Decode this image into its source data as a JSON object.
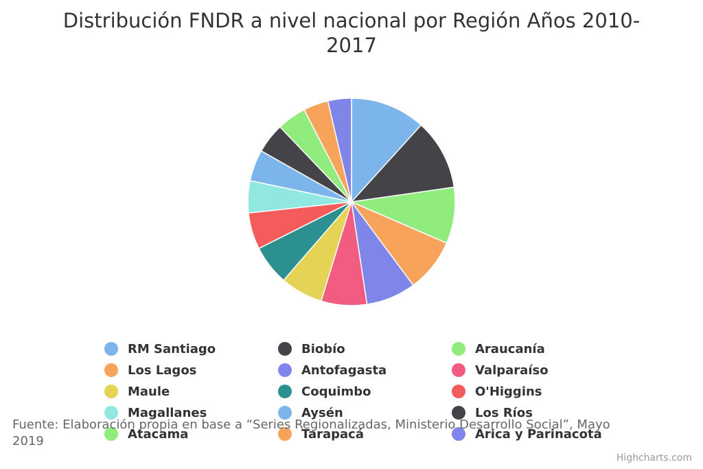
{
  "chart_data": {
    "type": "pie",
    "title": "Distribución FNDR a nivel nacional por Región Años 2010-2017",
    "slices": [
      {
        "name": "RM Santiago",
        "value": 11.5,
        "color": "#7cb5ec"
      },
      {
        "name": "Biobío",
        "value": 10.8,
        "color": "#434348"
      },
      {
        "name": "Araucanía",
        "value": 8.6,
        "color": "#90ed7d"
      },
      {
        "name": "Los Lagos",
        "value": 8.2,
        "color": "#f7a35c"
      },
      {
        "name": "Antofagasta",
        "value": 7.6,
        "color": "#8085e9"
      },
      {
        "name": "Valparaíso",
        "value": 7.0,
        "color": "#f15c80"
      },
      {
        "name": "Maule",
        "value": 6.5,
        "color": "#e4d354"
      },
      {
        "name": "Coquimbo",
        "value": 6.1,
        "color": "#2b908f"
      },
      {
        "name": "O'Higgins",
        "value": 5.6,
        "color": "#f45b5b"
      },
      {
        "name": "Magallanes",
        "value": 4.9,
        "color": "#91e8e1"
      },
      {
        "name": "Aysén",
        "value": 4.8,
        "color": "#7cb5ec"
      },
      {
        "name": "Los Ríos",
        "value": 4.6,
        "color": "#434348"
      },
      {
        "name": "Atacama",
        "value": 4.5,
        "color": "#90ed7d"
      },
      {
        "name": "Tarapacá",
        "value": 3.8,
        "color": "#f7a35c"
      },
      {
        "name": "Arica y Parinacota",
        "value": 3.6,
        "color": "#8085e9"
      }
    ],
    "legend_position": "bottom"
  },
  "source_note": "Fuente: Elaboración propia en base a “Series Regionalizadas, Ministerio Desarrollo Social”, Mayo 2019",
  "credits": "Highcharts.com"
}
